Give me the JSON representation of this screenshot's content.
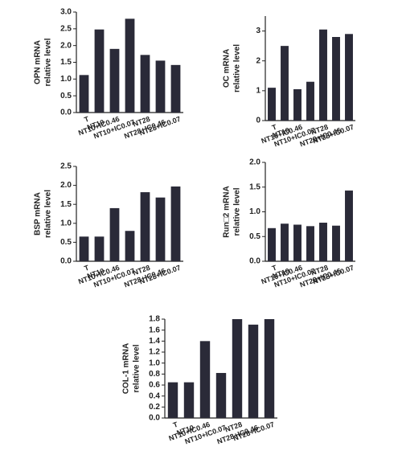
{
  "chart_data": [
    {
      "type": "bar",
      "ylabel": [
        "OPN mRNA",
        "relative level"
      ],
      "color": "#2a2a38",
      "categories": [
        "T",
        "NT10",
        "NT10+IC0.46",
        "NT10+IC0.07",
        "NT28",
        "NT28+IC0.46",
        "NT28+IC0.07"
      ],
      "values": [
        1.12,
        2.48,
        1.9,
        2.8,
        1.72,
        1.55,
        1.42
      ],
      "ylim": [
        0,
        3
      ],
      "yticks": [
        {
          "value": 0,
          "label": "0.0"
        },
        0.5,
        {
          "value": 1,
          "label": "1.0"
        },
        1.5,
        {
          "value": 2,
          "label": "2.0"
        },
        2.5,
        {
          "value": 3,
          "label": "3.0"
        }
      ]
    },
    {
      "type": "bar",
      "ylabel": [
        "OC mRNA",
        "relative level"
      ],
      "color": "#2a2a38",
      "categories": [
        "T",
        "NT10",
        "NT10+IC0.46",
        "NT10+IC0.07",
        "NT28",
        "NT28+IC0.46",
        "NT28+IC0.07"
      ],
      "values": [
        1.1,
        2.5,
        1.05,
        1.3,
        3.05,
        2.8,
        2.9
      ],
      "ylim": [
        0,
        3.5
      ],
      "yticks": [
        0,
        1,
        2,
        3
      ]
    },
    {
      "type": "bar",
      "ylabel": [
        "BSP mRNA",
        "relative level"
      ],
      "color": "#2a2a38",
      "categories": [
        "T",
        "NT10",
        "NT10+IC0.46",
        "NT10+IC0.07",
        "NT28",
        "NT28+IC0.46",
        "NT28+IC0.07"
      ],
      "values": [
        0.65,
        0.65,
        1.4,
        0.8,
        1.82,
        1.68,
        1.97
      ],
      "ylim": [
        0,
        2.5
      ],
      "yticks": [
        {
          "value": 0,
          "label": "0.0"
        },
        0.5,
        {
          "value": 1,
          "label": "1.0"
        },
        1.5,
        {
          "value": 2,
          "label": "2.0"
        },
        2.5
      ]
    },
    {
      "type": "bar",
      "ylabel": [
        "Run□2 mRNA",
        "relative level"
      ],
      "color": "#2a2a38",
      "categories": [
        "T",
        "NT10",
        "NT10+IC0.46",
        "NT10+IC0.07",
        "NT28",
        "NT28+IC0.46",
        "NT28+IC0.07"
      ],
      "values": [
        0.67,
        0.76,
        0.74,
        0.71,
        0.78,
        0.72,
        1.43
      ],
      "ylim": [
        0,
        2
      ],
      "yticks": [
        {
          "value": 0,
          "label": "0.0"
        },
        0.5,
        {
          "value": 1,
          "label": "1.0"
        },
        1.5,
        {
          "value": 2,
          "label": "2.0"
        }
      ]
    },
    {
      "type": "bar",
      "ylabel": [
        "COL-1 mRNA",
        "relative level"
      ],
      "color": "#2a2a38",
      "categories": [
        "T",
        "NT10",
        "NT10+IC0.46",
        "NT10+IC0.07",
        "NT28",
        "NT28+IC0.46",
        "NT28+IC0.07"
      ],
      "values": [
        0.65,
        0.65,
        1.4,
        0.82,
        1.8,
        1.7,
        1.8
      ],
      "ylim": [
        0,
        1.8
      ],
      "yticks": [
        {
          "value": 0,
          "label": "0.0"
        },
        0.2,
        0.4,
        0.6,
        0.8,
        {
          "value": 1,
          "label": "1.0"
        },
        1.2,
        1.4,
        1.6,
        1.8
      ]
    }
  ]
}
